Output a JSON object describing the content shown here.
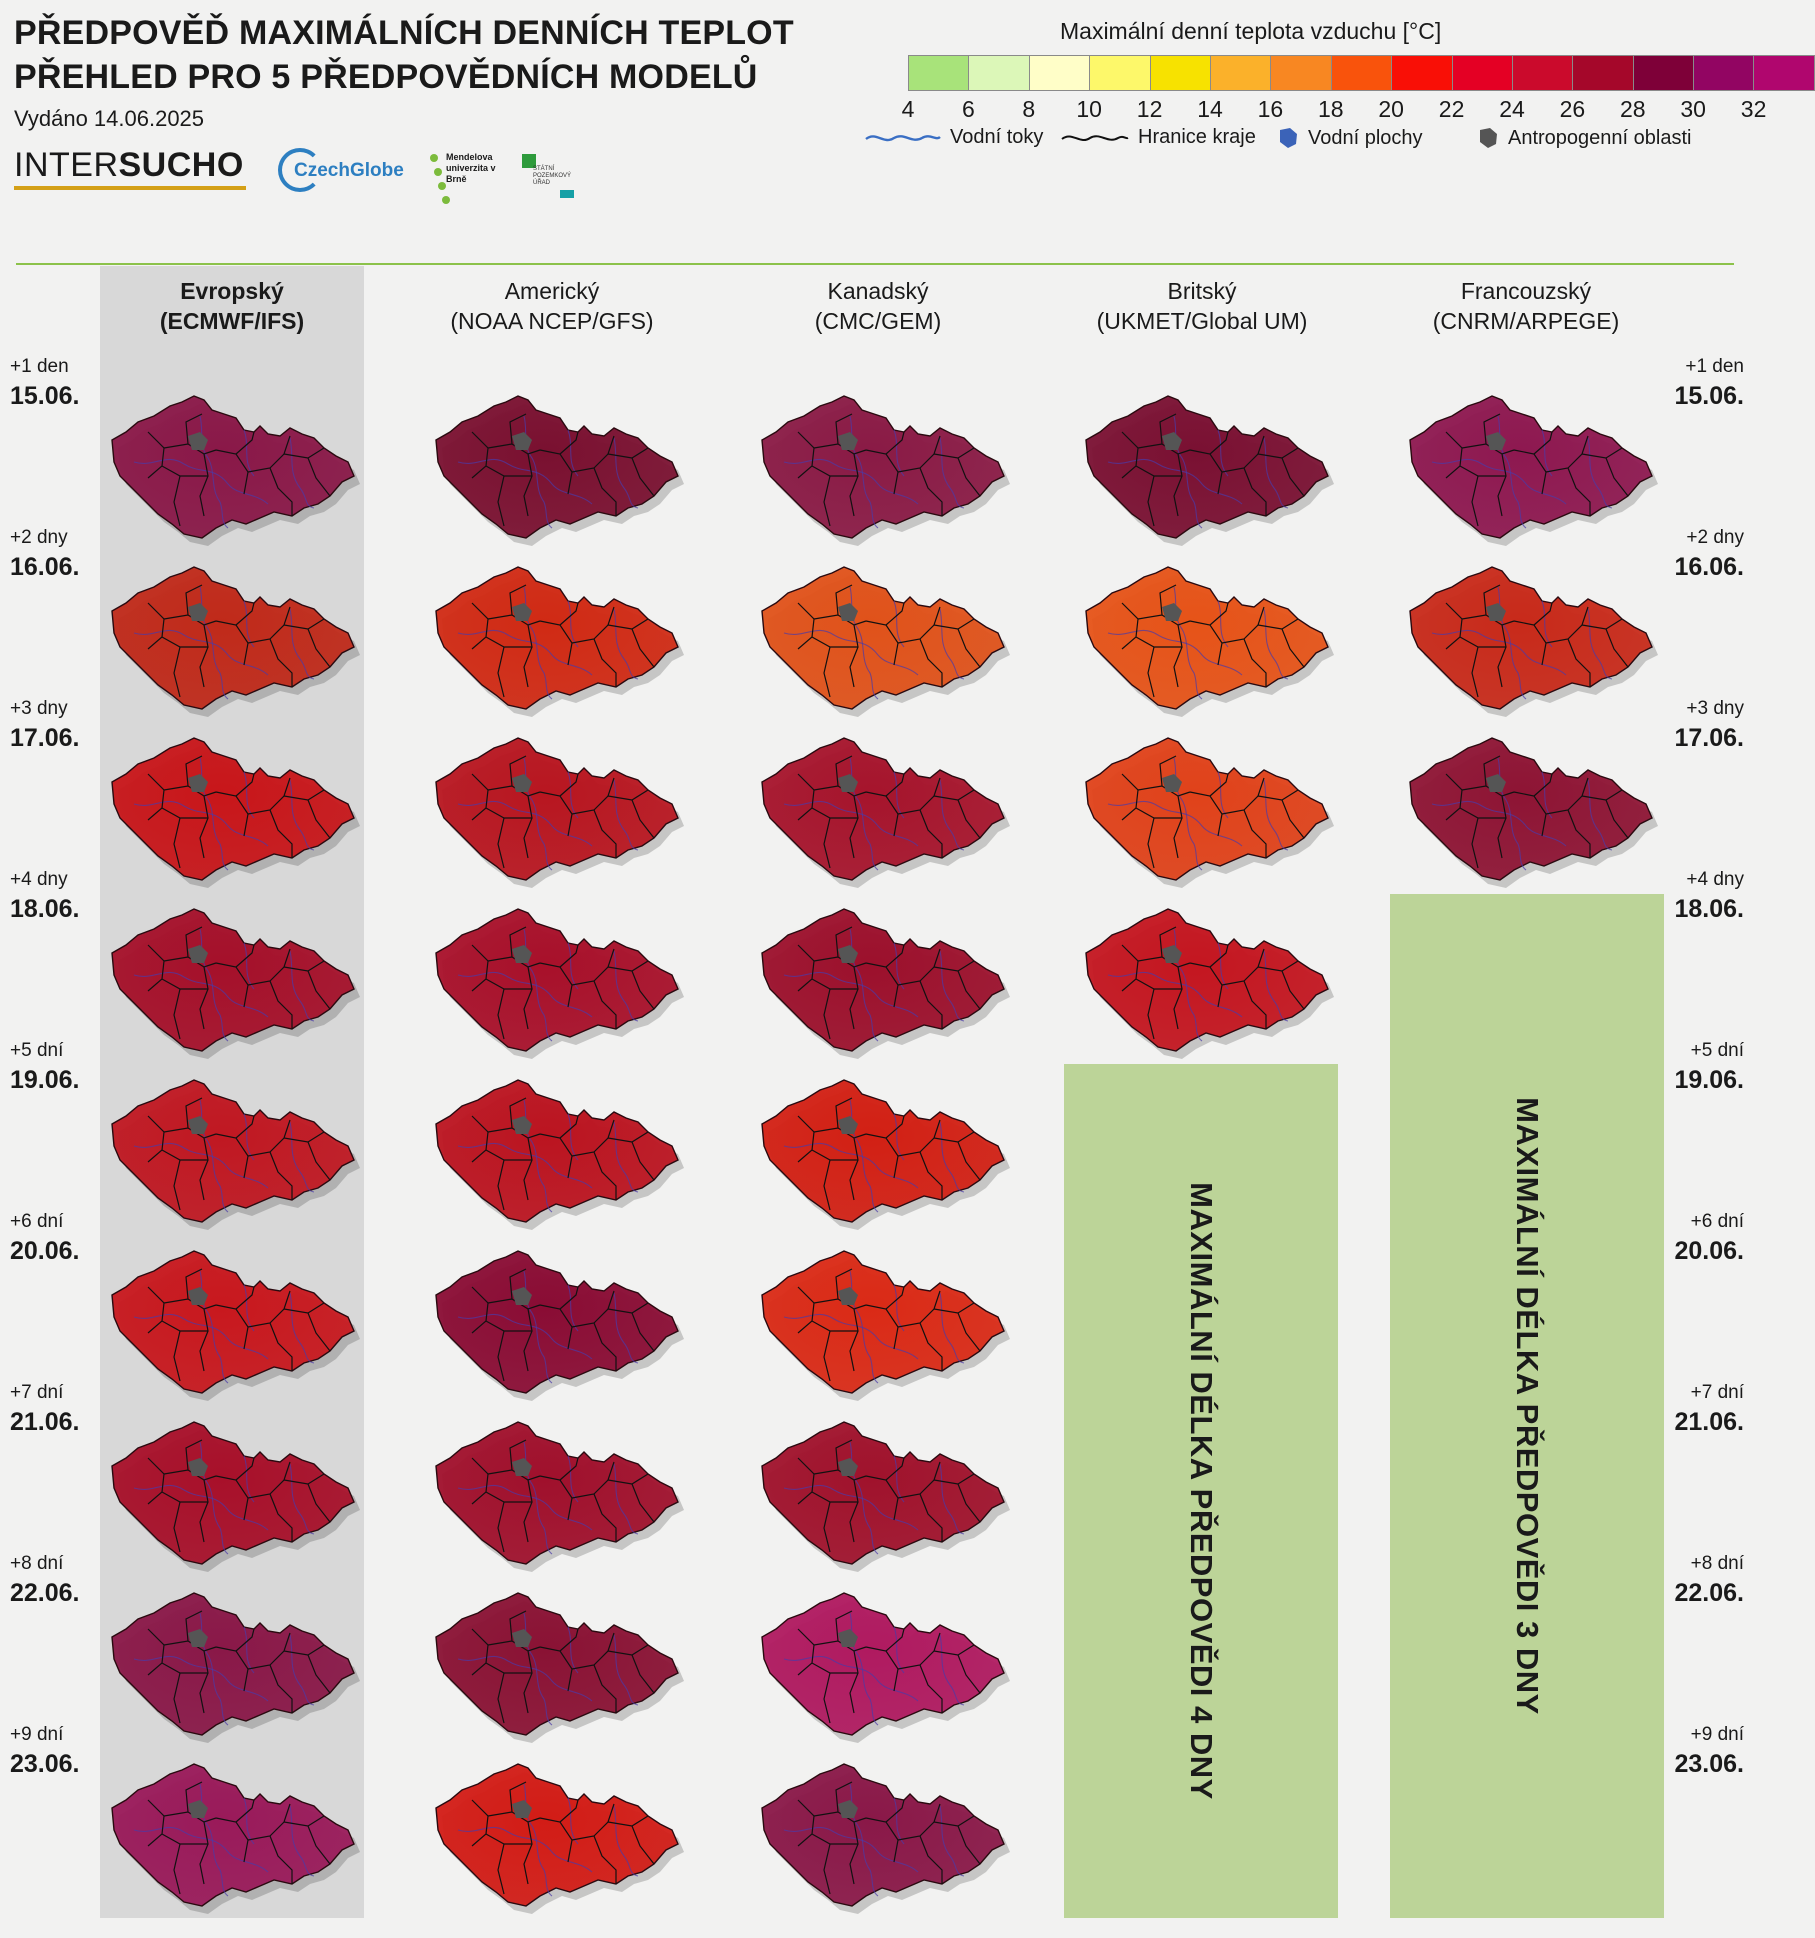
{
  "header": {
    "title_line1": "PŘEDPOVĚĎ MAXIMÁLNÍCH DENNÍCH TEPLOT",
    "title_line2": "PŘEHLED PRO 5 PŘEDPOVĚDNÍCH MODELŮ",
    "issued": "Vydáno 14.06.2025"
  },
  "logos": {
    "intersucho_a": "INTER",
    "intersucho_b": "SUCHO",
    "czechglobe": "CzechGlobe",
    "mendel": "Mendelova univerzita v Brně",
    "spu": "STÁTNÍ POZEMKOVÝ ÚŘAD"
  },
  "legend": {
    "title": "Maximální denní teplota vzduchu [°C]",
    "colors": [
      "#a8e37a",
      "#dcf7b8",
      "#fffec8",
      "#fdf86a",
      "#f7e200",
      "#fbb12a",
      "#f88722",
      "#f9530c",
      "#f90f06",
      "#e40024",
      "#cb0a2c",
      "#a5072a",
      "#7e0038",
      "#920562",
      "#b0066e"
    ],
    "ticks": [
      "4",
      "6",
      "8",
      "10",
      "12",
      "14",
      "16",
      "18",
      "20",
      "22",
      "24",
      "26",
      "28",
      "30",
      "32"
    ],
    "items": {
      "rivers": "Vodní toky",
      "borders": "Hranice kraje",
      "water": "Vodní plochy",
      "urban": "Antropogenní oblasti"
    }
  },
  "models": [
    {
      "name": "Evropský",
      "code": "(ECMWF/IFS)",
      "days": 9
    },
    {
      "name": "Americký",
      "code": "(NOAA NCEP/GFS)",
      "days": 9
    },
    {
      "name": "Kanadský",
      "code": "(CMC/GEM)",
      "days": 9
    },
    {
      "name": "Britský",
      "code": "(UKMET/Global UM)",
      "days": 4
    },
    {
      "name": "Francouzský",
      "code": "(CNRM/ARPEGE)",
      "days": 3
    }
  ],
  "days": [
    {
      "offset": "+1 den",
      "date": "15.06."
    },
    {
      "offset": "+2 dny",
      "date": "16.06."
    },
    {
      "offset": "+3 dny",
      "date": "17.06."
    },
    {
      "offset": "+4 dny",
      "date": "18.06."
    },
    {
      "offset": "+5 dní",
      "date": "19.06."
    },
    {
      "offset": "+6 dní",
      "date": "20.06."
    },
    {
      "offset": "+7 dní",
      "date": "21.06."
    },
    {
      "offset": "+8 dní",
      "date": "22.06."
    },
    {
      "offset": "+9 dní",
      "date": "23.06."
    }
  ],
  "maps": [
    [
      "#8a1848",
      "#c02a1a",
      "#c8161a",
      "#a5102a",
      "#c01822",
      "#c8181e",
      "#a8102a",
      "#8a1848",
      "#9a1a5a"
    ],
    [
      "#7a1030",
      "#d02a14",
      "#b81620",
      "#a8102a",
      "#bb1420",
      "#8a0c34",
      "#a0102c",
      "#8a1234",
      "#d21c16"
    ],
    [
      "#8a1a45",
      "#e0521a",
      "#a6142c",
      "#9c102c",
      "#d22014",
      "#da2a16",
      "#a0122c",
      "#b01a60",
      "#8a1848"
    ],
    [
      "#7a1032",
      "#e65318",
      "#e0421a",
      "#c41620",
      "null",
      "null",
      "null",
      "null",
      "null"
    ],
    [
      "#8e1850",
      "#c82a1a",
      "#8e1434",
      "null",
      "null",
      "null",
      "null",
      "null",
      "null"
    ]
  ],
  "no_forecast": {
    "uk": "MAXIMÁLNÍ DÉLKA PŘEDPOVĚDI 4 DNY",
    "fr": "MAXIMÁLNÍ DÉLKA PŘEDPOVĚDI 3 DNY"
  }
}
